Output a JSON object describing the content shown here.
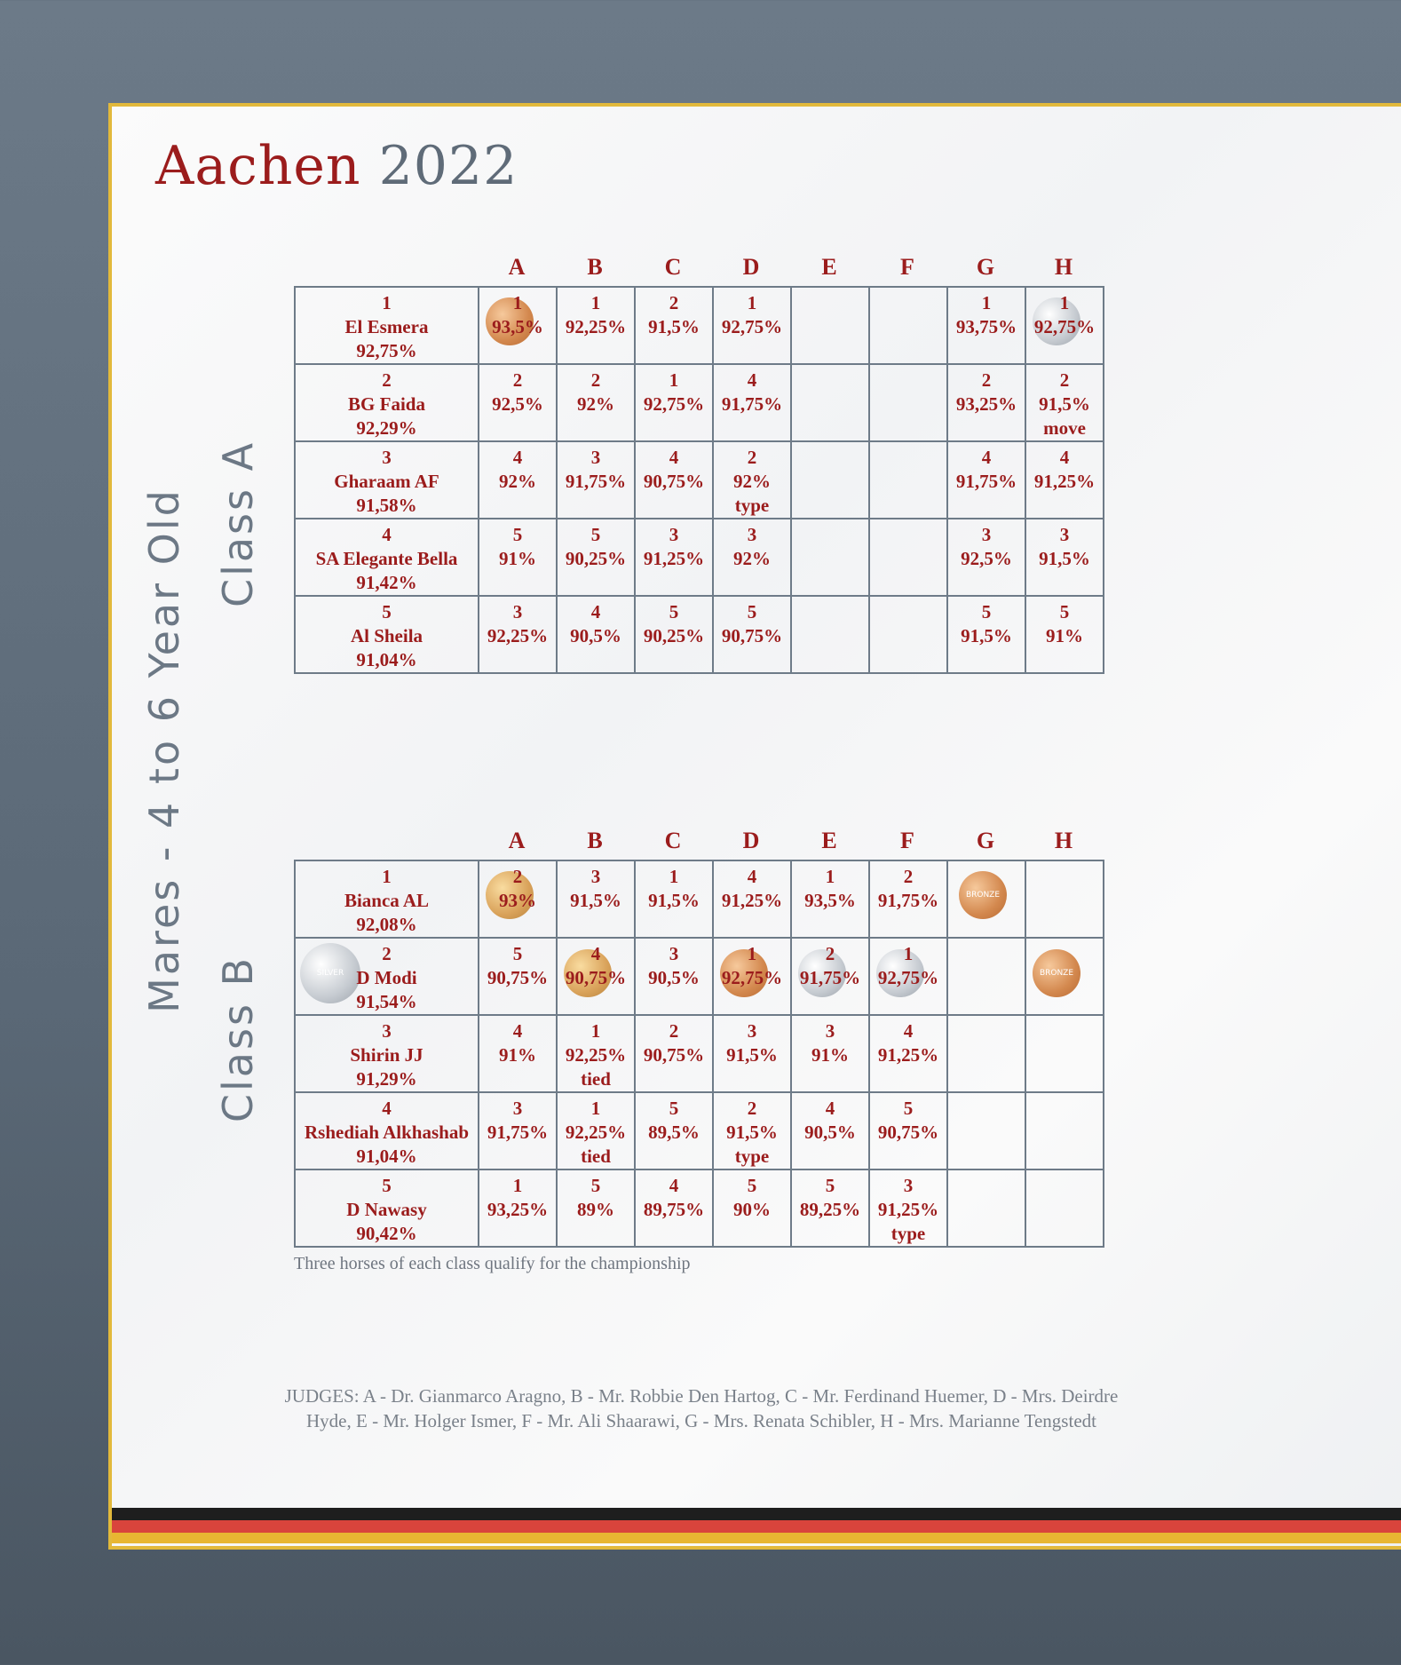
{
  "title": {
    "name": "Aachen",
    "year": "2022"
  },
  "section": "Mares - 4 to 6 Year Old",
  "tables": [
    {
      "label": "Class A",
      "columns": [
        "A",
        "B",
        "C",
        "D",
        "E",
        "F",
        "G",
        "H"
      ],
      "rows": [
        {
          "horse": [
            "1",
            "El Esmera",
            "92,75%"
          ],
          "scores": [
            [
              "1",
              "93,5%"
            ],
            [
              "1",
              "92,25%"
            ],
            [
              "2",
              "91,5%"
            ],
            [
              "1",
              "92,75%"
            ],
            [],
            [],
            [
              "1",
              "93,75%"
            ],
            [
              "1",
              "92,75%"
            ]
          ]
        },
        {
          "horse": [
            "2",
            "BG Faida",
            "92,29%"
          ],
          "scores": [
            [
              "2",
              "92,5%"
            ],
            [
              "2",
              "92%"
            ],
            [
              "1",
              "92,75%"
            ],
            [
              "4",
              "91,75%"
            ],
            [],
            [],
            [
              "2",
              "93,25%"
            ],
            [
              "2",
              "91,5%",
              "move"
            ]
          ]
        },
        {
          "horse": [
            "3",
            "Gharaam AF",
            "91,58%"
          ],
          "scores": [
            [
              "4",
              "92%"
            ],
            [
              "3",
              "91,75%"
            ],
            [
              "4",
              "90,75%"
            ],
            [
              "2",
              "92%",
              "type"
            ],
            [],
            [],
            [
              "4",
              "91,75%"
            ],
            [
              "4",
              "91,25%"
            ]
          ]
        },
        {
          "horse": [
            "4",
            "SA Elegante Bella",
            "91,42%"
          ],
          "scores": [
            [
              "5",
              "91%"
            ],
            [
              "5",
              "90,25%"
            ],
            [
              "3",
              "91,25%"
            ],
            [
              "3",
              "92%"
            ],
            [],
            [],
            [
              "3",
              "92,5%"
            ],
            [
              "3",
              "91,5%"
            ]
          ]
        },
        {
          "horse": [
            "5",
            "Al Sheila",
            "91,04%"
          ],
          "scores": [
            [
              "3",
              "92,25%"
            ],
            [
              "4",
              "90,5%"
            ],
            [
              "5",
              "90,25%"
            ],
            [
              "5",
              "90,75%"
            ],
            [],
            [],
            [
              "5",
              "91,5%"
            ],
            [
              "5",
              "91%"
            ]
          ]
        }
      ]
    },
    {
      "label": "Class B",
      "columns": [
        "A",
        "B",
        "C",
        "D",
        "E",
        "F",
        "G",
        "H"
      ],
      "rows": [
        {
          "horse": [
            "1",
            "Bianca AL",
            "92,08%"
          ],
          "scores": [
            [
              "2",
              "93%"
            ],
            [
              "3",
              "91,5%"
            ],
            [
              "1",
              "91,5%"
            ],
            [
              "4",
              "91,25%"
            ],
            [
              "1",
              "93,5%"
            ],
            [
              "2",
              "91,75%"
            ],
            [],
            []
          ]
        },
        {
          "horse": [
            "2",
            "D Modi",
            "91,54%"
          ],
          "scores": [
            [
              "5",
              "90,75%"
            ],
            [
              "4",
              "90,75%"
            ],
            [
              "3",
              "90,5%"
            ],
            [
              "1",
              "92,75%"
            ],
            [
              "2",
              "91,75%"
            ],
            [
              "1",
              "92,75%"
            ],
            [],
            []
          ]
        },
        {
          "horse": [
            "3",
            "Shirin JJ",
            "91,29%"
          ],
          "scores": [
            [
              "4",
              "91%"
            ],
            [
              "1",
              "92,25%",
              "tied"
            ],
            [
              "2",
              "90,75%"
            ],
            [
              "3",
              "91,5%"
            ],
            [
              "3",
              "91%"
            ],
            [
              "4",
              "91,25%"
            ],
            [],
            []
          ]
        },
        {
          "horse": [
            "4",
            "Rshediah Alkhashab",
            "91,04%"
          ],
          "scores": [
            [
              "3",
              "91,75%"
            ],
            [
              "1",
              "92,25%",
              "tied"
            ],
            [
              "5",
              "89,5%"
            ],
            [
              "2",
              "91,5%",
              "type"
            ],
            [
              "4",
              "90,5%"
            ],
            [
              "5",
              "90,75%"
            ],
            [],
            []
          ]
        },
        {
          "horse": [
            "5",
            "D Nawasy",
            "90,42%"
          ],
          "scores": [
            [
              "1",
              "93,25%"
            ],
            [
              "5",
              "89%"
            ],
            [
              "4",
              "89,75%"
            ],
            [
              "5",
              "90%"
            ],
            [
              "5",
              "89,25%"
            ],
            [
              "3",
              "91,25%",
              "type"
            ],
            [],
            []
          ]
        }
      ]
    }
  ],
  "note": "Three horses of each class qualify for the championship",
  "medal_labels": {
    "silver": "SILVER",
    "bronze": "BRONZE"
  },
  "judges": [
    "JUDGES: A - Dr. Gianmarco Aragno, B - Mr. Robbie Den Hartog, C - Mr. Ferdinand Huemer, D - Mrs. Deirdre",
    "Hyde, E - Mr. Holger Ismer, F - Mr. Ali Shaarawi, G - Mrs. Renata Schibler, H - Mrs. Marianne Tengstedt"
  ]
}
